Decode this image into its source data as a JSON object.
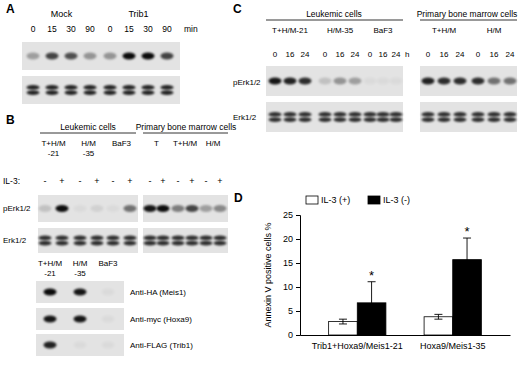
{
  "panels": {
    "A": {
      "label": "A",
      "groups": [
        {
          "name": "Mock",
          "times": [
            "0",
            "15",
            "30",
            "90"
          ]
        },
        {
          "name": "Trib1",
          "times": [
            "0",
            "15",
            "30",
            "90"
          ]
        }
      ],
      "time_unit": "min"
    },
    "B": {
      "label": "B",
      "headers": [
        "Leukemic cells",
        "Primary bone marrow cells"
      ],
      "lanes": [
        {
          "name": "T+H/M",
          "sub": "-21"
        },
        {
          "name": "H/M",
          "sub": "-35"
        },
        {
          "name": "BaF3"
        },
        {
          "name": "T"
        },
        {
          "name": "T+H/M"
        },
        {
          "name": "H/M"
        }
      ],
      "treatment": "IL-3:",
      "signs": [
        "-",
        "+"
      ],
      "rows": [
        "pErk1/2",
        "Erk1/2"
      ],
      "lower_lanes": [
        {
          "name": "T+H/M",
          "sub": "-21"
        },
        {
          "name": "H/M",
          "sub": "-35"
        },
        {
          "name": "BaF3"
        }
      ],
      "lower_rows": [
        "Anti-HA (Meis1)",
        "Anti-myc (Hoxa9)",
        "Anti-FLAG (Trib1)"
      ]
    },
    "C": {
      "label": "C",
      "headers": [
        "Leukemic cells",
        "Primary bone marrow cells"
      ],
      "groups": [
        "T+H/M-21",
        "H/M-35",
        "BaF3",
        "T+H/M",
        "H/M"
      ],
      "times": [
        "0",
        "16",
        "24"
      ],
      "time_unit": "h",
      "rows": [
        "pErk1/2",
        "Erk1/2"
      ]
    },
    "D": {
      "label": "D"
    }
  },
  "chart_data": {
    "type": "bar",
    "categories": [
      "Trib1+Hoxa9/Meis1-21",
      "Hoxa9/Meis1-35"
    ],
    "y_label": "Annexin V positive cells %",
    "ylim": [
      0,
      25
    ],
    "yticks": [
      0,
      5,
      10,
      15,
      20,
      25
    ],
    "legend": "top",
    "series": [
      {
        "name": "IL-3 (+)",
        "color": "#ffffff",
        "values": [
          2.8,
          3.8
        ],
        "errors": [
          0.5,
          0.5
        ]
      },
      {
        "name": "IL-3 (-)",
        "color": "#000000",
        "values": [
          6.7,
          15.7
        ],
        "errors": [
          4.4,
          4.5
        ],
        "annotations": [
          "*",
          "*"
        ]
      }
    ]
  }
}
